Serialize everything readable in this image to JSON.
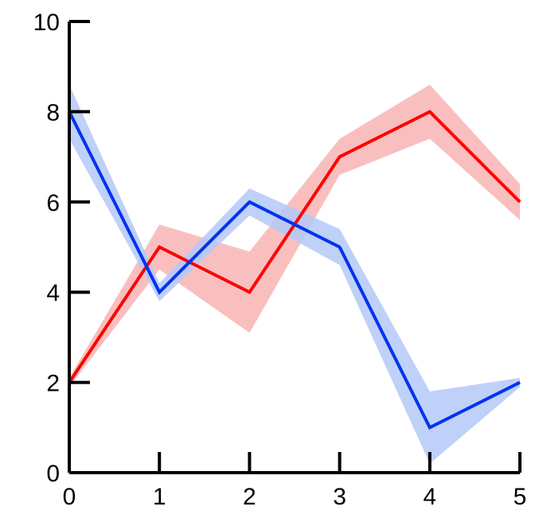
{
  "chart_data": {
    "type": "line",
    "title": "",
    "xlabel": "",
    "ylabel": "",
    "xlim": [
      0,
      5
    ],
    "ylim": [
      0,
      10
    ],
    "xticks": [
      "0",
      "1",
      "2",
      "3",
      "4",
      "5"
    ],
    "yticks": [
      "0",
      "2",
      "4",
      "6",
      "8",
      "10"
    ],
    "grid": false,
    "series": [
      {
        "color": "#ff0000",
        "band_color": "#f8b4b4",
        "x": [
          0,
          1,
          2,
          3,
          4,
          5
        ],
        "values": [
          2,
          5,
          4,
          7,
          8,
          6
        ],
        "lower": [
          1.9,
          4.5,
          3.1,
          6.6,
          7.4,
          5.6
        ],
        "upper": [
          2.1,
          5.5,
          4.9,
          7.4,
          8.6,
          6.4
        ]
      },
      {
        "color": "#0033ee",
        "band_color": "#b4c8f8",
        "x": [
          0,
          1,
          2,
          3,
          4,
          5
        ],
        "values": [
          8,
          4,
          6,
          5,
          1,
          2
        ],
        "lower": [
          7.4,
          3.8,
          5.7,
          4.6,
          0.2,
          1.9
        ],
        "upper": [
          8.6,
          4.2,
          6.3,
          5.4,
          1.8,
          2.1
        ]
      }
    ]
  }
}
